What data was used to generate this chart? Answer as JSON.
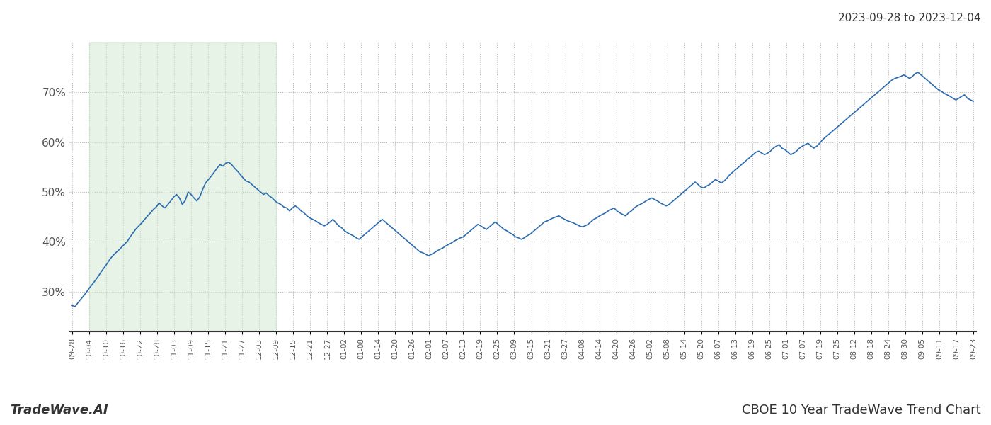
{
  "title_top_right": "2023-09-28 to 2023-12-04",
  "bottom_left": "TradeWave.AI",
  "bottom_right": "CBOE 10 Year TradeWave Trend Chart",
  "line_color": "#2b6cb0",
  "line_width": 1.2,
  "shade_color": "#c8e6c9",
  "shade_alpha": 0.45,
  "background_color": "#ffffff",
  "grid_color": "#bbbbbb",
  "grid_style": ":",
  "ylim": [
    22,
    80
  ],
  "yticks": [
    30,
    40,
    50,
    60,
    70
  ],
  "ytick_labels": [
    "30%",
    "40%",
    "50%",
    "60%",
    "70%"
  ],
  "x_labels": [
    "09-28",
    "10-04",
    "10-10",
    "10-16",
    "10-22",
    "10-28",
    "11-03",
    "11-09",
    "11-15",
    "11-21",
    "11-27",
    "12-03",
    "12-09",
    "12-15",
    "12-21",
    "12-27",
    "01-02",
    "01-08",
    "01-14",
    "01-20",
    "01-26",
    "02-01",
    "02-07",
    "02-13",
    "02-19",
    "02-25",
    "03-09",
    "03-15",
    "03-21",
    "03-27",
    "04-08",
    "04-14",
    "04-20",
    "04-26",
    "05-02",
    "05-08",
    "05-14",
    "05-20",
    "06-07",
    "06-13",
    "06-19",
    "06-25",
    "07-01",
    "07-07",
    "07-19",
    "07-25",
    "08-12",
    "08-18",
    "08-24",
    "08-30",
    "09-05",
    "09-11",
    "09-17",
    "09-23"
  ],
  "shade_start_label": "10-04",
  "shade_end_label": "12-09",
  "values": [
    27.2,
    27.0,
    27.8,
    28.5,
    29.2,
    30.0,
    30.8,
    31.5,
    32.3,
    33.1,
    34.0,
    34.8,
    35.6,
    36.5,
    37.2,
    37.8,
    38.3,
    38.9,
    39.5,
    40.1,
    41.0,
    41.8,
    42.6,
    43.2,
    43.8,
    44.5,
    45.2,
    45.8,
    46.5,
    47.0,
    47.8,
    47.2,
    46.8,
    47.5,
    48.2,
    49.0,
    49.5,
    48.8,
    47.5,
    48.3,
    50.0,
    49.5,
    48.8,
    48.2,
    49.0,
    50.5,
    51.8,
    52.5,
    53.2,
    54.0,
    54.8,
    55.5,
    55.2,
    55.8,
    56.0,
    55.5,
    54.8,
    54.2,
    53.5,
    52.8,
    52.2,
    52.0,
    51.5,
    51.0,
    50.5,
    50.0,
    49.5,
    49.8,
    49.2,
    48.8,
    48.2,
    47.8,
    47.5,
    47.0,
    46.8,
    46.2,
    46.8,
    47.2,
    46.8,
    46.2,
    45.8,
    45.2,
    44.8,
    44.5,
    44.2,
    43.8,
    43.5,
    43.2,
    43.5,
    44.0,
    44.5,
    43.8,
    43.2,
    42.8,
    42.2,
    41.8,
    41.5,
    41.2,
    40.8,
    40.5,
    41.0,
    41.5,
    42.0,
    42.5,
    43.0,
    43.5,
    44.0,
    44.5,
    44.0,
    43.5,
    43.0,
    42.5,
    42.0,
    41.5,
    41.0,
    40.5,
    40.0,
    39.5,
    39.0,
    38.5,
    38.0,
    37.8,
    37.5,
    37.2,
    37.5,
    37.8,
    38.2,
    38.5,
    38.8,
    39.2,
    39.5,
    39.8,
    40.2,
    40.5,
    40.8,
    41.0,
    41.5,
    42.0,
    42.5,
    43.0,
    43.5,
    43.2,
    42.8,
    42.5,
    43.0,
    43.5,
    44.0,
    43.5,
    43.0,
    42.5,
    42.2,
    41.8,
    41.5,
    41.0,
    40.8,
    40.5,
    40.8,
    41.2,
    41.5,
    42.0,
    42.5,
    43.0,
    43.5,
    44.0,
    44.2,
    44.5,
    44.8,
    45.0,
    45.2,
    44.8,
    44.5,
    44.2,
    44.0,
    43.8,
    43.5,
    43.2,
    43.0,
    43.2,
    43.5,
    44.0,
    44.5,
    44.8,
    45.2,
    45.5,
    45.8,
    46.2,
    46.5,
    46.8,
    46.2,
    45.8,
    45.5,
    45.2,
    45.8,
    46.2,
    46.8,
    47.2,
    47.5,
    47.8,
    48.2,
    48.5,
    48.8,
    48.5,
    48.2,
    47.8,
    47.5,
    47.2,
    47.5,
    48.0,
    48.5,
    49.0,
    49.5,
    50.0,
    50.5,
    51.0,
    51.5,
    52.0,
    51.5,
    51.0,
    50.8,
    51.2,
    51.5,
    52.0,
    52.5,
    52.2,
    51.8,
    52.2,
    52.8,
    53.5,
    54.0,
    54.5,
    55.0,
    55.5,
    56.0,
    56.5,
    57.0,
    57.5,
    58.0,
    58.2,
    57.8,
    57.5,
    57.8,
    58.2,
    58.8,
    59.2,
    59.5,
    58.8,
    58.5,
    58.0,
    57.5,
    57.8,
    58.2,
    58.8,
    59.2,
    59.5,
    59.8,
    59.2,
    58.8,
    59.2,
    59.8,
    60.5,
    61.0,
    61.5,
    62.0,
    62.5,
    63.0,
    63.5,
    64.0,
    64.5,
    65.0,
    65.5,
    66.0,
    66.5,
    67.0,
    67.5,
    68.0,
    68.5,
    69.0,
    69.5,
    70.0,
    70.5,
    71.0,
    71.5,
    72.0,
    72.5,
    72.8,
    73.0,
    73.2,
    73.5,
    73.2,
    72.8,
    73.2,
    73.8,
    74.0,
    73.5,
    73.0,
    72.5,
    72.0,
    71.5,
    71.0,
    70.5,
    70.2,
    69.8,
    69.5,
    69.2,
    68.8,
    68.5,
    68.8,
    69.2,
    69.5,
    68.8,
    68.5,
    68.2
  ]
}
